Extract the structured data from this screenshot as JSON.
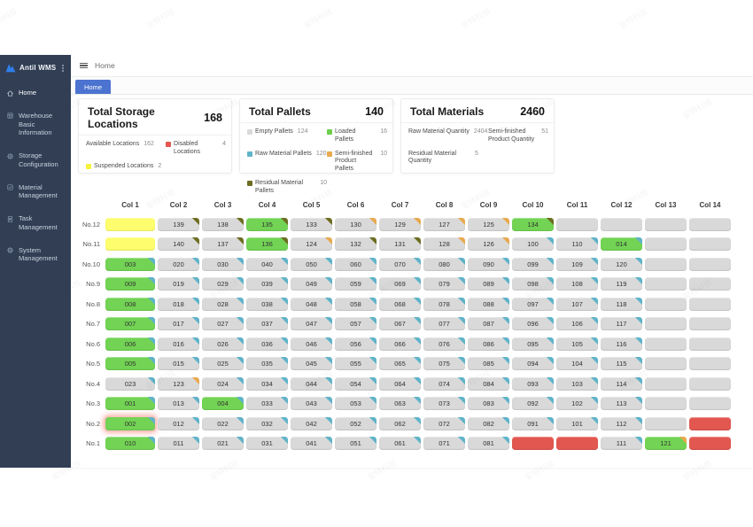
{
  "app": {
    "title": "Antil WMS"
  },
  "sidebar": {
    "items": [
      {
        "label": "Home",
        "icon": "home-icon",
        "active": true
      },
      {
        "label": "Warehouse Basic Information",
        "icon": "warehouse-icon",
        "active": false
      },
      {
        "label": "Storage Configuration",
        "icon": "gear-icon",
        "active": false
      },
      {
        "label": "Material Management",
        "icon": "material-icon",
        "active": false
      },
      {
        "label": "Task Management",
        "icon": "task-icon",
        "active": false
      },
      {
        "label": "System Management",
        "icon": "gear-icon",
        "active": false
      }
    ]
  },
  "topbar": {
    "breadcrumb": "Home"
  },
  "tabs": [
    {
      "label": "Home",
      "active": true
    }
  ],
  "cards": [
    {
      "title": "Total Storage Locations",
      "total": "168",
      "stats": [
        {
          "label": "Available Locations",
          "value": "162",
          "swatch": null
        },
        {
          "label": "Disabled Locations",
          "value": "4",
          "swatch": "#e2574f"
        },
        {
          "label": "Suspended Locations",
          "value": "2",
          "swatch": "#f7f23d"
        }
      ]
    },
    {
      "title": "Total Pallets",
      "total": "140",
      "stats": [
        {
          "label": "Empty Pallets",
          "value": "124",
          "swatch": "#d9d9d9"
        },
        {
          "label": "Loaded Pallets",
          "value": "16",
          "swatch": "#6fce4e"
        },
        {
          "label": "Raw Material Pallets",
          "value": "120",
          "swatch": "#5fb3c9"
        },
        {
          "label": "Semi-finished Product Pallets",
          "value": "10",
          "swatch": "#e8a94f"
        },
        {
          "label": "Residual Material Pallets",
          "value": "10",
          "swatch": "#6d6d22"
        }
      ]
    },
    {
      "title": "Total Materials",
      "total": "2460",
      "stats": [
        {
          "label": "Raw Material Quantity",
          "value": "2404",
          "swatch": null
        },
        {
          "label": "Semi-finished Product Quantity",
          "value": "51",
          "swatch": null
        },
        {
          "label": "Residual Material Quantity",
          "value": "5",
          "swatch": null
        }
      ]
    }
  ],
  "colors": {
    "gray": "#d9d9d9",
    "green": "#72d354",
    "yellow": "#fdfd6e",
    "red": "#e2574f",
    "blue": "#5fb3c9",
    "orange": "#e8a94f",
    "olive": "#6d6d22",
    "accent": "#4c73d0",
    "sidebar": "#313e54"
  },
  "grid": {
    "columns": [
      "Col 1",
      "Col 2",
      "Col 3",
      "Col 4",
      "Col 5",
      "Col 6",
      "Col 7",
      "Col 8",
      "Col 9",
      "Col 10",
      "Col 11",
      "Col 12",
      "Col 13",
      "Col 14"
    ],
    "rows": [
      {
        "label": "No.12",
        "cells": [
          [
            "",
            "yellow"
          ],
          [
            "139",
            "gray",
            "olive"
          ],
          [
            "138",
            "gray",
            "olive"
          ],
          [
            "135",
            "green",
            "olive"
          ],
          [
            "133",
            "gray",
            "olive"
          ],
          [
            "130",
            "gray",
            "orange"
          ],
          [
            "129",
            "gray",
            "orange"
          ],
          [
            "127",
            "gray",
            "orange"
          ],
          [
            "125",
            "gray",
            "orange"
          ],
          [
            "134",
            "green",
            "olive"
          ],
          [
            "",
            "gray"
          ],
          [
            "",
            "gray"
          ],
          [
            "",
            "gray"
          ],
          [
            "",
            "gray"
          ]
        ]
      },
      {
        "label": "No.11",
        "cells": [
          [
            "",
            "yellow"
          ],
          [
            "140",
            "gray",
            "olive"
          ],
          [
            "137",
            "gray",
            "olive"
          ],
          [
            "136",
            "green",
            "olive"
          ],
          [
            "124",
            "gray",
            "orange"
          ],
          [
            "132",
            "gray",
            "olive"
          ],
          [
            "131",
            "gray",
            "olive"
          ],
          [
            "128",
            "gray",
            "orange"
          ],
          [
            "126",
            "gray",
            "orange"
          ],
          [
            "100",
            "gray",
            "blue"
          ],
          [
            "110",
            "gray",
            "blue"
          ],
          [
            "014",
            "green",
            "blue"
          ],
          [
            "",
            "gray"
          ],
          [
            "",
            "gray"
          ]
        ]
      },
      {
        "label": "No.10",
        "cells": [
          [
            "003",
            "green",
            "blue"
          ],
          [
            "020",
            "gray",
            "blue"
          ],
          [
            "030",
            "gray",
            "blue"
          ],
          [
            "040",
            "gray",
            "blue"
          ],
          [
            "050",
            "gray",
            "blue"
          ],
          [
            "060",
            "gray",
            "blue"
          ],
          [
            "070",
            "gray",
            "blue"
          ],
          [
            "080",
            "gray",
            "blue"
          ],
          [
            "090",
            "gray",
            "blue"
          ],
          [
            "099",
            "gray",
            "blue"
          ],
          [
            "109",
            "gray",
            "blue"
          ],
          [
            "120",
            "gray",
            "blue"
          ],
          [
            "",
            "gray"
          ],
          [
            "",
            "gray"
          ]
        ]
      },
      {
        "label": "No.9",
        "cells": [
          [
            "009",
            "green",
            "blue"
          ],
          [
            "019",
            "gray",
            "blue"
          ],
          [
            "029",
            "gray",
            "blue"
          ],
          [
            "039",
            "gray",
            "blue"
          ],
          [
            "049",
            "gray",
            "blue"
          ],
          [
            "059",
            "gray",
            "blue"
          ],
          [
            "069",
            "gray",
            "blue"
          ],
          [
            "079",
            "gray",
            "blue"
          ],
          [
            "089",
            "gray",
            "blue"
          ],
          [
            "098",
            "gray",
            "blue"
          ],
          [
            "108",
            "gray",
            "blue"
          ],
          [
            "119",
            "gray",
            "blue"
          ],
          [
            "",
            "gray"
          ],
          [
            "",
            "gray"
          ]
        ]
      },
      {
        "label": "No.8",
        "cells": [
          [
            "008",
            "green",
            "blue"
          ],
          [
            "018",
            "gray",
            "blue"
          ],
          [
            "028",
            "gray",
            "blue"
          ],
          [
            "038",
            "gray",
            "blue"
          ],
          [
            "048",
            "gray",
            "blue"
          ],
          [
            "058",
            "gray",
            "blue"
          ],
          [
            "068",
            "gray",
            "blue"
          ],
          [
            "078",
            "gray",
            "blue"
          ],
          [
            "088",
            "gray",
            "blue"
          ],
          [
            "097",
            "gray",
            "blue"
          ],
          [
            "107",
            "gray",
            "blue"
          ],
          [
            "118",
            "gray",
            "blue"
          ],
          [
            "",
            "gray"
          ],
          [
            "",
            "gray"
          ]
        ]
      },
      {
        "label": "No.7",
        "cells": [
          [
            "007",
            "green",
            "blue"
          ],
          [
            "017",
            "gray",
            "blue"
          ],
          [
            "027",
            "gray",
            "blue"
          ],
          [
            "037",
            "gray",
            "blue"
          ],
          [
            "047",
            "gray",
            "blue"
          ],
          [
            "057",
            "gray",
            "blue"
          ],
          [
            "067",
            "gray",
            "blue"
          ],
          [
            "077",
            "gray",
            "blue"
          ],
          [
            "087",
            "gray",
            "blue"
          ],
          [
            "096",
            "gray",
            "blue"
          ],
          [
            "106",
            "gray",
            "blue"
          ],
          [
            "117",
            "gray",
            "blue"
          ],
          [
            "",
            "gray"
          ],
          [
            "",
            "gray"
          ]
        ]
      },
      {
        "label": "No.6",
        "cells": [
          [
            "006",
            "green",
            "blue"
          ],
          [
            "016",
            "gray",
            "blue"
          ],
          [
            "026",
            "gray",
            "blue"
          ],
          [
            "036",
            "gray",
            "blue"
          ],
          [
            "046",
            "gray",
            "blue"
          ],
          [
            "056",
            "gray",
            "blue"
          ],
          [
            "066",
            "gray",
            "blue"
          ],
          [
            "076",
            "gray",
            "blue"
          ],
          [
            "086",
            "gray",
            "blue"
          ],
          [
            "095",
            "gray",
            "blue"
          ],
          [
            "105",
            "gray",
            "blue"
          ],
          [
            "116",
            "gray",
            "blue"
          ],
          [
            "",
            "gray"
          ],
          [
            "",
            "gray"
          ]
        ]
      },
      {
        "label": "No.5",
        "cells": [
          [
            "005",
            "green",
            "blue"
          ],
          [
            "015",
            "gray",
            "blue"
          ],
          [
            "025",
            "gray",
            "blue"
          ],
          [
            "035",
            "gray",
            "blue"
          ],
          [
            "045",
            "gray",
            "blue"
          ],
          [
            "055",
            "gray",
            "blue"
          ],
          [
            "065",
            "gray",
            "blue"
          ],
          [
            "075",
            "gray",
            "blue"
          ],
          [
            "085",
            "gray",
            "blue"
          ],
          [
            "094",
            "gray",
            "blue"
          ],
          [
            "104",
            "gray",
            "blue"
          ],
          [
            "115",
            "gray",
            "blue"
          ],
          [
            "",
            "gray"
          ],
          [
            "",
            "gray"
          ]
        ]
      },
      {
        "label": "No.4",
        "cells": [
          [
            "023",
            "gray",
            "blue"
          ],
          [
            "123",
            "gray",
            "orange"
          ],
          [
            "024",
            "gray",
            "blue"
          ],
          [
            "034",
            "gray",
            "blue"
          ],
          [
            "044",
            "gray",
            "blue"
          ],
          [
            "054",
            "gray",
            "blue"
          ],
          [
            "064",
            "gray",
            "blue"
          ],
          [
            "074",
            "gray",
            "blue"
          ],
          [
            "084",
            "gray",
            "blue"
          ],
          [
            "093",
            "gray",
            "blue"
          ],
          [
            "103",
            "gray",
            "blue"
          ],
          [
            "114",
            "gray",
            "blue"
          ],
          [
            "",
            "gray"
          ],
          [
            "",
            "gray"
          ]
        ]
      },
      {
        "label": "No.3",
        "cells": [
          [
            "001",
            "green",
            "blue"
          ],
          [
            "013",
            "gray",
            "blue"
          ],
          [
            "004",
            "green",
            "blue"
          ],
          [
            "033",
            "gray",
            "blue"
          ],
          [
            "043",
            "gray",
            "blue"
          ],
          [
            "053",
            "gray",
            "blue"
          ],
          [
            "063",
            "gray",
            "blue"
          ],
          [
            "073",
            "gray",
            "blue"
          ],
          [
            "083",
            "gray",
            "blue"
          ],
          [
            "092",
            "gray",
            "blue"
          ],
          [
            "102",
            "gray",
            "blue"
          ],
          [
            "113",
            "gray",
            "blue"
          ],
          [
            "",
            "gray"
          ],
          [
            "",
            "gray"
          ]
        ]
      },
      {
        "label": "No.2",
        "cells": [
          [
            "002",
            "green",
            "blue",
            1
          ],
          [
            "012",
            "gray",
            "blue"
          ],
          [
            "022",
            "gray",
            "blue"
          ],
          [
            "032",
            "gray",
            "blue"
          ],
          [
            "042",
            "gray",
            "blue"
          ],
          [
            "052",
            "gray",
            "blue"
          ],
          [
            "062",
            "gray",
            "blue"
          ],
          [
            "072",
            "gray",
            "blue"
          ],
          [
            "082",
            "gray",
            "blue"
          ],
          [
            "091",
            "gray",
            "blue"
          ],
          [
            "101",
            "gray",
            "blue"
          ],
          [
            "112",
            "gray",
            "blue"
          ],
          [
            "",
            "gray"
          ],
          [
            "",
            "red"
          ]
        ]
      },
      {
        "label": "No.1",
        "cells": [
          [
            "010",
            "green",
            "blue"
          ],
          [
            "011",
            "gray",
            "blue"
          ],
          [
            "021",
            "gray",
            "blue"
          ],
          [
            "031",
            "gray",
            "blue"
          ],
          [
            "041",
            "gray",
            "blue"
          ],
          [
            "051",
            "gray",
            "blue"
          ],
          [
            "061",
            "gray",
            "blue"
          ],
          [
            "071",
            "gray",
            "blue"
          ],
          [
            "081",
            "gray",
            "blue"
          ],
          [
            "",
            "red"
          ],
          [
            "",
            "red"
          ],
          [
            "111",
            "gray",
            "blue"
          ],
          [
            "121",
            "green",
            "orange"
          ],
          [
            "",
            "red"
          ]
        ]
      }
    ]
  },
  "watermark": {
    "text": "安特科技"
  }
}
